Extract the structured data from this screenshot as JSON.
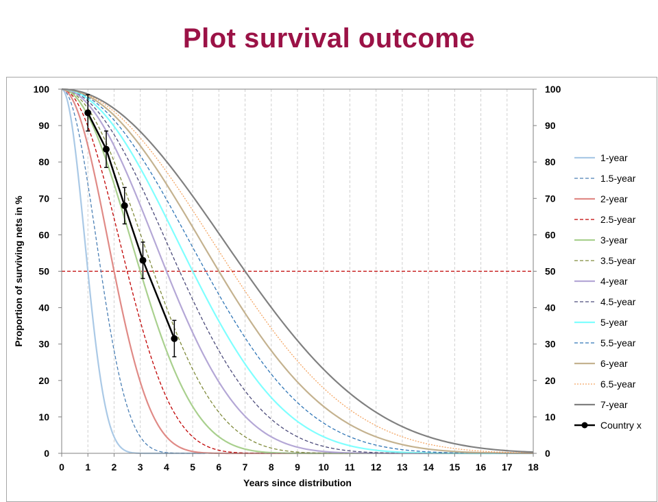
{
  "slide": {
    "title": "Plot survival outcome"
  },
  "colors": {
    "title": "#9b1246",
    "reference_line": "#c00000",
    "grid": "#d0d0d0",
    "axis": "#7f7f7f"
  },
  "chart_data": {
    "type": "line",
    "title": "",
    "xlabel": "Years since distribution",
    "ylabel": "Proportion of surviving nets in %",
    "xlim": [
      0,
      18
    ],
    "ylim": [
      0,
      100
    ],
    "x_ticks": [
      0,
      1,
      2,
      3,
      4,
      5,
      6,
      7,
      8,
      9,
      10,
      11,
      12,
      13,
      14,
      15,
      16,
      17,
      18
    ],
    "y_ticks": [
      0,
      10,
      20,
      30,
      40,
      50,
      60,
      70,
      80,
      90,
      100
    ],
    "secondary_y_axis": true,
    "grid": "vertical dashed",
    "legend_position": "right",
    "curve_model": "smooth-compact survival: P(t) = 100*exp(20 - 20/(1-(t/L)^2)), L = 2*median/sqrt(1 - 20/(20 - ln 0.5))",
    "reference_line": {
      "y": 50,
      "style": "dashed",
      "color": "#c00000"
    },
    "series": [
      {
        "name": "1-year",
        "median": 1.0,
        "color": "#aac9e6",
        "dash": "solid"
      },
      {
        "name": "1.5-year",
        "median": 1.5,
        "color": "#4a7fb5",
        "dash": "dashed"
      },
      {
        "name": "2-year",
        "median": 2.0,
        "color": "#e08a86",
        "dash": "solid"
      },
      {
        "name": "2.5-year",
        "median": 2.5,
        "color": "#c00000",
        "dash": "dashed"
      },
      {
        "name": "3-year",
        "median": 3.0,
        "color": "#a9d08e",
        "dash": "solid"
      },
      {
        "name": "3.5-year",
        "median": 3.5,
        "color": "#7f8a3a",
        "dash": "dashed"
      },
      {
        "name": "4-year",
        "median": 4.0,
        "color": "#b4a7d6",
        "dash": "solid"
      },
      {
        "name": "4.5-year",
        "median": 4.5,
        "color": "#4b4a7a",
        "dash": "dashed"
      },
      {
        "name": "5-year",
        "median": 5.0,
        "color": "#7fffff",
        "dash": "solid"
      },
      {
        "name": "5.5-year",
        "median": 5.5,
        "color": "#2e75b6",
        "dash": "dashed"
      },
      {
        "name": "6-year",
        "median": 6.0,
        "color": "#c4b28f",
        "dash": "solid"
      },
      {
        "name": "6.5-year",
        "median": 6.5,
        "color": "#f4a460",
        "dash": "dotted"
      },
      {
        "name": "7-year",
        "median": 7.0,
        "color": "#808080",
        "dash": "solid"
      }
    ],
    "observed": {
      "name": "Country x",
      "color": "#000000",
      "points": [
        {
          "x": 1.0,
          "y": 93.5,
          "err": 5
        },
        {
          "x": 1.7,
          "y": 83.5,
          "err": 5
        },
        {
          "x": 2.4,
          "y": 68.0,
          "err": 5
        },
        {
          "x": 3.1,
          "y": 53.0,
          "err": 5
        },
        {
          "x": 4.3,
          "y": 31.5,
          "err": 5
        }
      ]
    }
  }
}
